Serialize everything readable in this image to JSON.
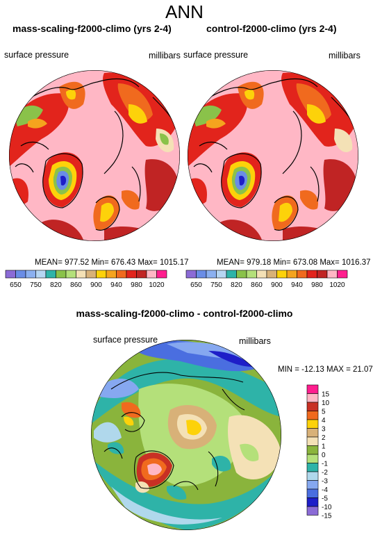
{
  "page": {
    "title": "ANN"
  },
  "colors": {
    "ocean": "#ffb7c5",
    "abs_palette": [
      "#8b6bd6",
      "#6a8de6",
      "#8bb0f0",
      "#b6d6f2",
      "#2eb3a8",
      "#8ac24a",
      "#b4e07a",
      "#f4e1b6",
      "#d8b178",
      "#fdd20a",
      "#f5a41e",
      "#f06a1e",
      "#e2241c",
      "#c02424",
      "#ffb7c5",
      "#ff1e8e"
    ],
    "diff_palette": [
      "#8b6bd6",
      "#1e1ec8",
      "#4a6ee0",
      "#86a8f0",
      "#b0d8ec",
      "#2eb3a8",
      "#b4e07a",
      "#8ab43c",
      "#f4e1b6",
      "#d8b178",
      "#fdd20a",
      "#f06a1e",
      "#c83024",
      "#ffb7c5",
      "#ff1e8e"
    ]
  },
  "chart_data": [
    {
      "type": "heatmap",
      "title": "mass-scaling-f2000-climo (yrs 2-4)",
      "left_label": "surface pressure",
      "right_label": "millibars",
      "stats": {
        "mean": "977.52",
        "min": "676.43",
        "max": "1015.17"
      },
      "stats_text": "MEAN= 977.52  Min= 676.43  Max= 1015.17",
      "colorbar_labels": [
        "650",
        "750",
        "820",
        "860",
        "900",
        "940",
        "980",
        "1020"
      ]
    },
    {
      "type": "heatmap",
      "title": "control-f2000-climo (yrs 2-4)",
      "left_label": "surface pressure",
      "right_label": "millibars",
      "stats": {
        "mean": "979.18",
        "min": "673.08",
        "max": "1016.37"
      },
      "stats_text": "MEAN= 979.18  Min= 673.08  Max= 1016.37",
      "colorbar_labels": [
        "650",
        "750",
        "820",
        "860",
        "900",
        "940",
        "980",
        "1020"
      ]
    },
    {
      "type": "heatmap",
      "title": "mass-scaling-f2000-climo - control-f2000-climo",
      "left_label": "surface pressure",
      "right_label": "millibars",
      "stats": {
        "min": "-12.13",
        "max": "21.07"
      },
      "stats_text": "MIN = -12.13 MAX =  21.07",
      "colorbar_labels": [
        "15",
        "10",
        "5",
        "4",
        "3",
        "2",
        "1",
        "0",
        "-1",
        "-2",
        "-3",
        "-4",
        "-5",
        "-10",
        "-15"
      ]
    }
  ]
}
